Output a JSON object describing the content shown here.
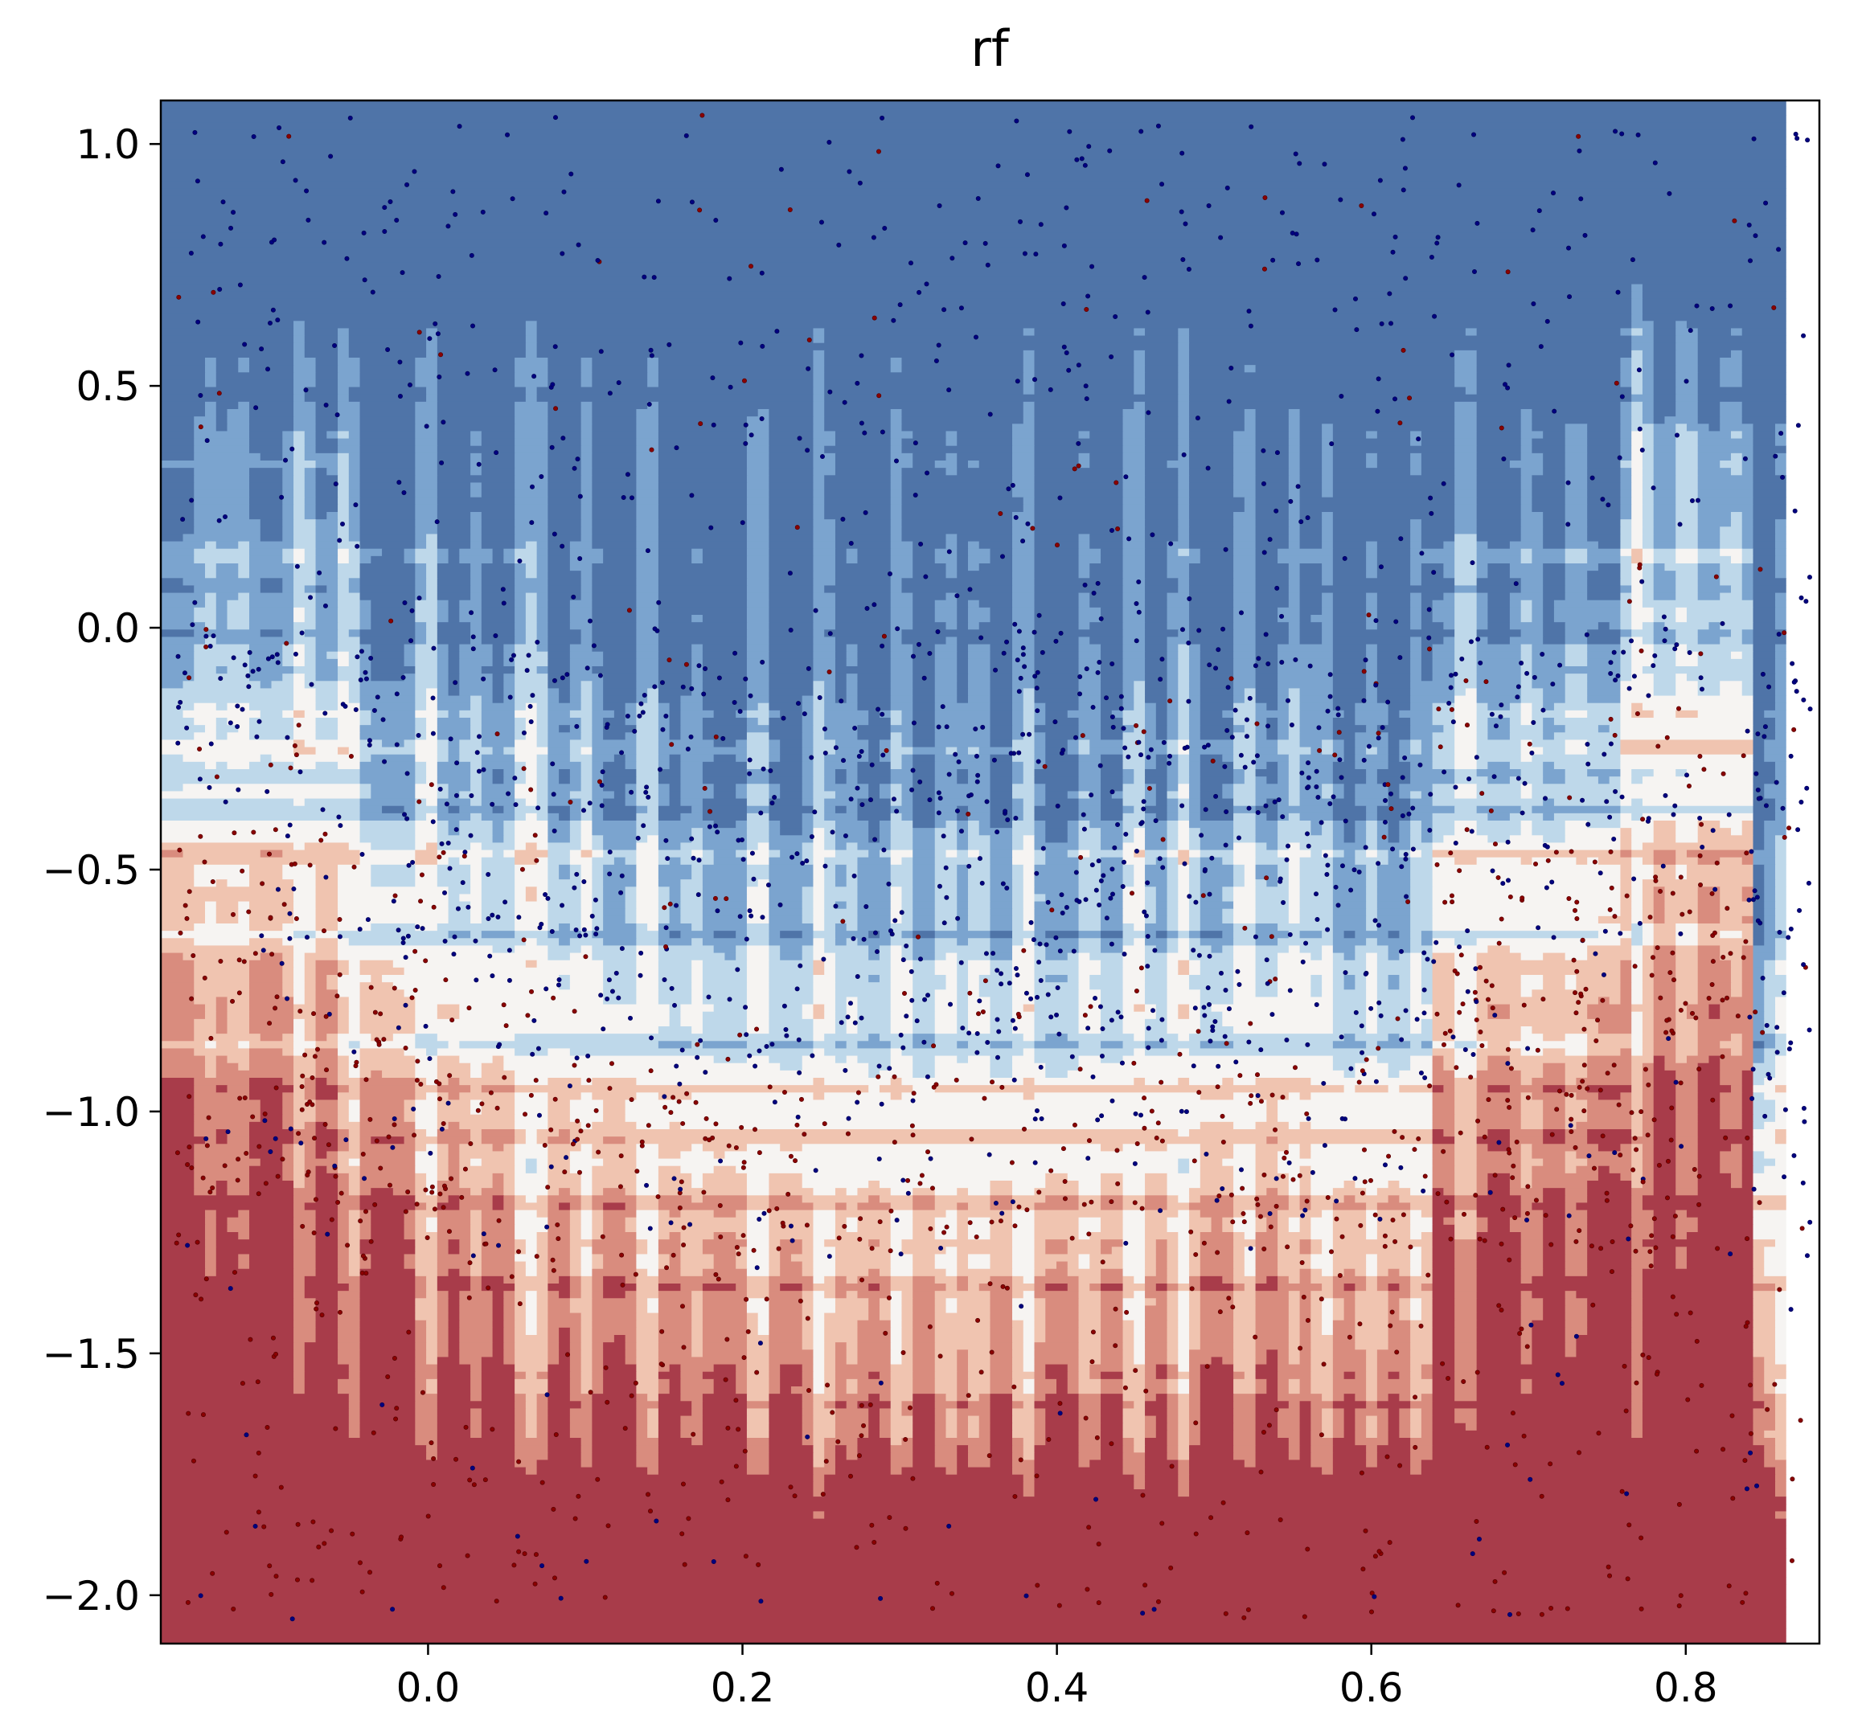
{
  "chart_data": {
    "type": "contour",
    "title": "rf",
    "xlabel": "",
    "ylabel": "",
    "xlim": [
      -0.17,
      0.885
    ],
    "ylim": [
      -2.1,
      1.09
    ],
    "x_ticks": [
      {
        "value": 0.0,
        "label": "0.0"
      },
      {
        "value": 0.2,
        "label": "0.2"
      },
      {
        "value": 0.4,
        "label": "0.4"
      },
      {
        "value": 0.6,
        "label": "0.6"
      },
      {
        "value": 0.8,
        "label": "0.8"
      }
    ],
    "y_ticks": [
      {
        "value": 1.0,
        "label": "1.0"
      },
      {
        "value": 0.5,
        "label": "0.5"
      },
      {
        "value": 0.0,
        "label": "0.0"
      },
      {
        "value": -0.5,
        "label": "−0.5"
      },
      {
        "value": -1.0,
        "label": "−1.0"
      },
      {
        "value": -1.5,
        "label": "−1.5"
      },
      {
        "value": -2.0,
        "label": "−2.0"
      }
    ],
    "colormap": "RdBu (two classes: blue top, red bottom)",
    "class_colors": {
      "blue_class": "#000080",
      "red_class": "#8b0000"
    },
    "contour_levels": [
      "#4f74a8",
      "#7ba4cf",
      "#bed8ea",
      "#f6f4f2",
      "#f0c4b0",
      "#d98c7e",
      "#a83c4a"
    ],
    "grid": false,
    "legend": "none"
  }
}
